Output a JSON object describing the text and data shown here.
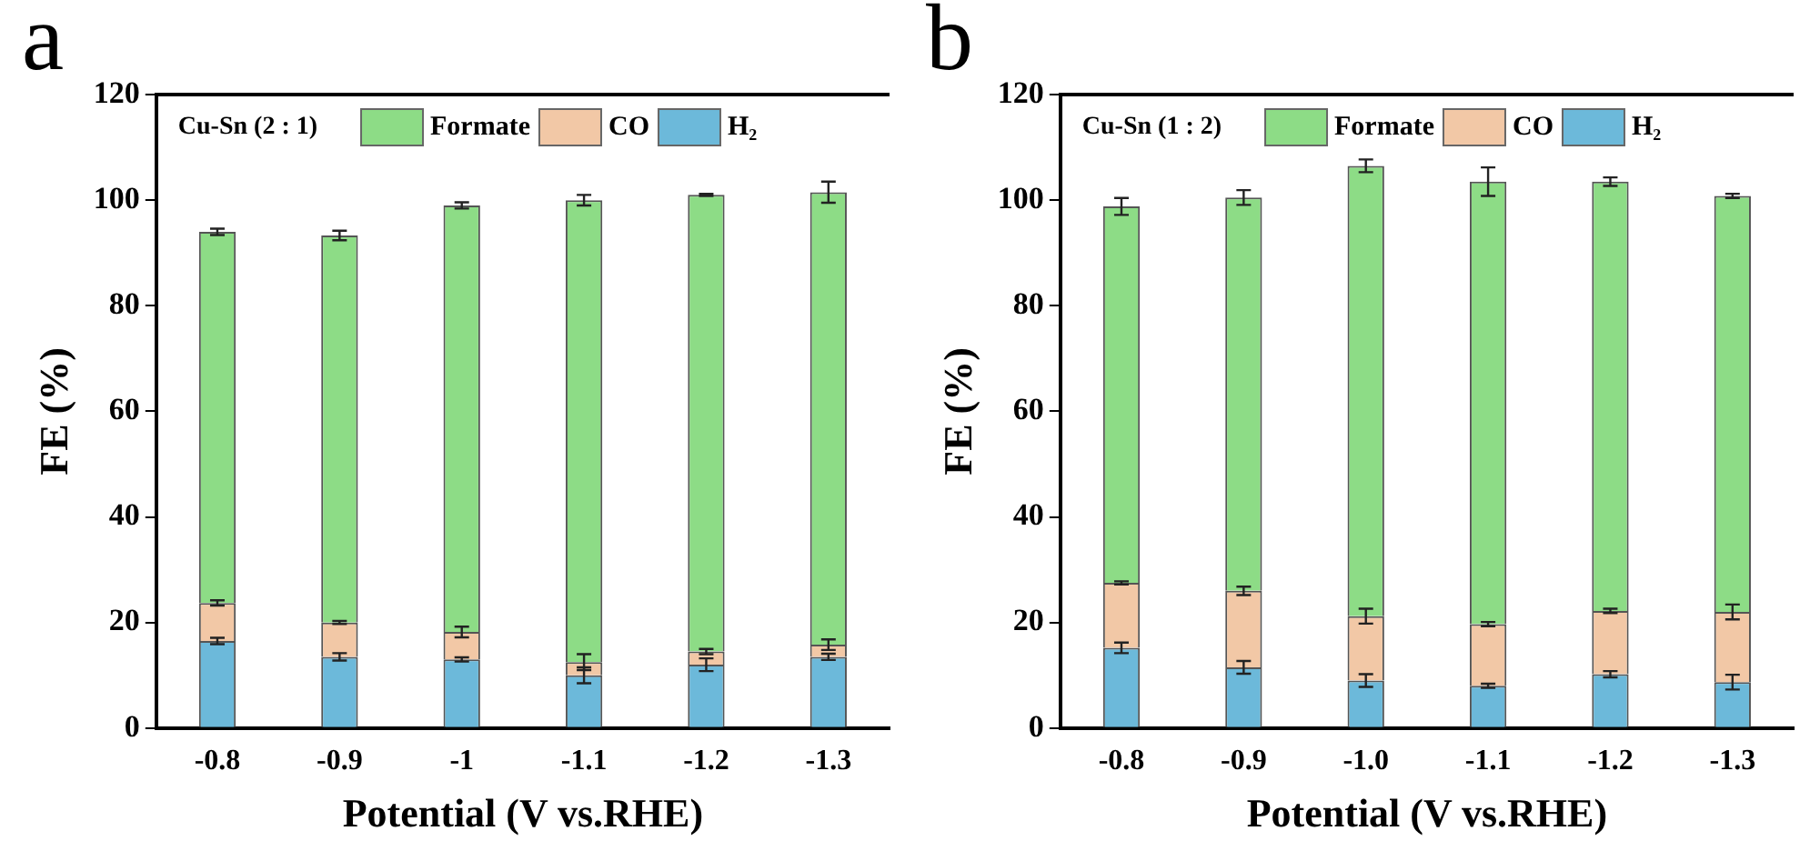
{
  "chart_data": [
    {
      "type": "bar",
      "title": "a",
      "legend_title": "Cu-Sn (2 : 1)",
      "xlabel": "Potential (V vs.RHE)",
      "ylabel": "FE (%)",
      "categories": [
        "-0.8",
        "-0.9",
        "-1",
        "-1.1",
        "-1.2",
        "-1.3"
      ],
      "stacked": true,
      "ylim": [
        0,
        120
      ],
      "yticks": [
        0,
        20,
        40,
        60,
        80,
        100,
        120
      ],
      "legend": "top",
      "series": [
        {
          "name": "H₂",
          "color": "#6cb9da",
          "values": [
            16.5,
            13.5,
            13,
            10,
            12,
            13.5
          ],
          "errors": [
            0.6,
            0.7,
            0.4,
            1.5,
            1.2,
            0.6
          ]
        },
        {
          "name": "CO",
          "color": "#f2c8a6",
          "values": [
            7.2,
            6.5,
            5.2,
            2.5,
            2.5,
            2.3
          ],
          "errors": [
            0.5,
            0.3,
            1,
            1.5,
            0.5,
            1
          ]
        },
        {
          "name": "Formate",
          "color": "#8ddc86",
          "values": [
            70.3,
            73.3,
            80.8,
            87.5,
            86.5,
            85.7
          ],
          "errors": [
            0.6,
            0.9,
            0.6,
            1,
            0.2,
            2
          ]
        }
      ]
    },
    {
      "type": "bar",
      "title": "b",
      "legend_title": "Cu-Sn (1 : 2)",
      "xlabel": "Potential (V vs.RHE)",
      "ylabel": "FE (%)",
      "categories": [
        "-0.8",
        "-0.9",
        "-1.0",
        "-1.1",
        "-1.2",
        "-1.3"
      ],
      "stacked": true,
      "ylim": [
        0,
        120
      ],
      "yticks": [
        0,
        20,
        40,
        60,
        80,
        100,
        120
      ],
      "legend": "top",
      "series": [
        {
          "name": "H₂",
          "color": "#6cb9da",
          "values": [
            15.2,
            11.5,
            9,
            8,
            10.2,
            8.7
          ],
          "errors": [
            1,
            1.2,
            1.2,
            0.4,
            0.6,
            1.4
          ]
        },
        {
          "name": "CO",
          "color": "#f2c8a6",
          "values": [
            12.3,
            14.5,
            12.2,
            11.7,
            12,
            13.3
          ],
          "errors": [
            0.3,
            0.8,
            1.4,
            0.4,
            0.4,
            1.4
          ]
        },
        {
          "name": "Formate",
          "color": "#8ddc86",
          "values": [
            71.3,
            74.5,
            85.3,
            83.8,
            81.3,
            78.8
          ],
          "errors": [
            1.6,
            1.4,
            1.2,
            2.7,
            0.8,
            0.4
          ]
        }
      ]
    }
  ]
}
